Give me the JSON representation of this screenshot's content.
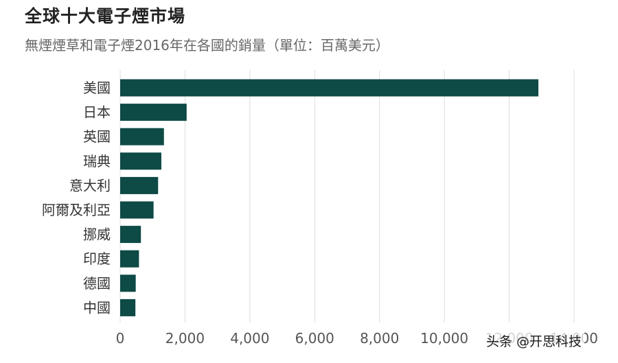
{
  "header": {
    "title": "全球十大電子煙市場",
    "subtitle": "無煙煙草和電子煙2016年在各國的銷量（單位：百萬美元）"
  },
  "watermark": "头条 @开思科技",
  "colors": {
    "bar": "#0e4a46",
    "grid": "#dcdcdc",
    "tick_label": "#555555",
    "category_label": "#333333"
  },
  "chart_data": {
    "type": "bar",
    "orientation": "horizontal",
    "categories": [
      "美國",
      "日本",
      "英國",
      "瑞典",
      "意大利",
      "阿爾及利亞",
      "挪威",
      "印度",
      "德國",
      "中國"
    ],
    "values": [
      12900,
      2050,
      1350,
      1270,
      1170,
      1030,
      640,
      580,
      480,
      470
    ],
    "xlim": [
      0,
      14000
    ],
    "xticks": [
      0,
      2000,
      4000,
      6000,
      8000,
      10000,
      12000,
      14000
    ],
    "xtick_labels": [
      "0",
      "2,000",
      "4,000",
      "6,000",
      "8,000",
      "10,000",
      "12,000",
      "14,000"
    ],
    "grid": "vertical",
    "legend": "none"
  }
}
